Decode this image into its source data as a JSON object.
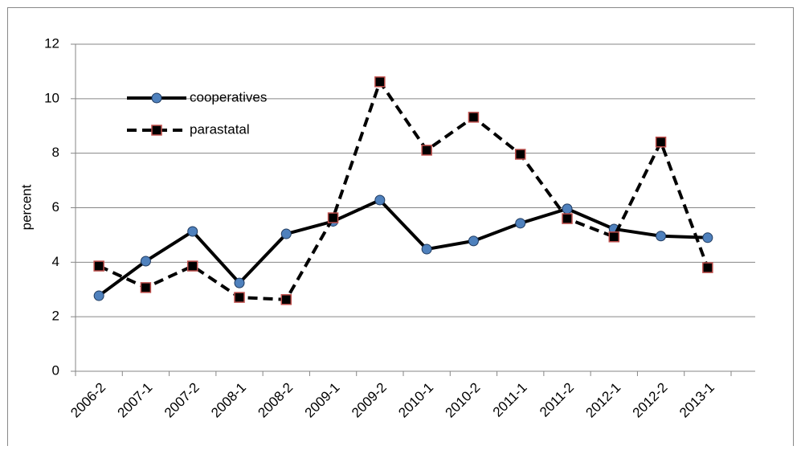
{
  "chart_data": {
    "type": "line",
    "y_label": "percent",
    "categories": [
      "2006-2",
      "2007-1",
      "2007-2",
      "2008-1",
      "2008-2",
      "2009-1",
      "2009-2",
      "2010-1",
      "2010-2",
      "2011-1",
      "2011-2",
      "2012-1",
      "2012-2",
      "2013-1"
    ],
    "series": [
      {
        "name": "cooperatives",
        "color": "#000000",
        "marker": "circle",
        "marker_fill": "#4f81bd",
        "dash": false,
        "values": [
          2.77,
          4.04,
          5.13,
          3.24,
          5.04,
          5.5,
          6.28,
          4.48,
          4.78,
          5.43,
          5.96,
          5.22,
          4.96,
          4.9
        ]
      },
      {
        "name": "parastatal",
        "color": "#000000",
        "marker": "square",
        "marker_fill": "#000000",
        "dash": true,
        "values": [
          3.86,
          3.07,
          3.86,
          2.71,
          2.63,
          5.63,
          10.62,
          8.11,
          9.32,
          7.96,
          5.6,
          4.93,
          8.41,
          3.8
        ]
      }
    ],
    "ylim": [
      0,
      12
    ],
    "yticks": [
      0,
      2,
      4,
      6,
      8,
      10,
      12
    ],
    "grid": true
  }
}
